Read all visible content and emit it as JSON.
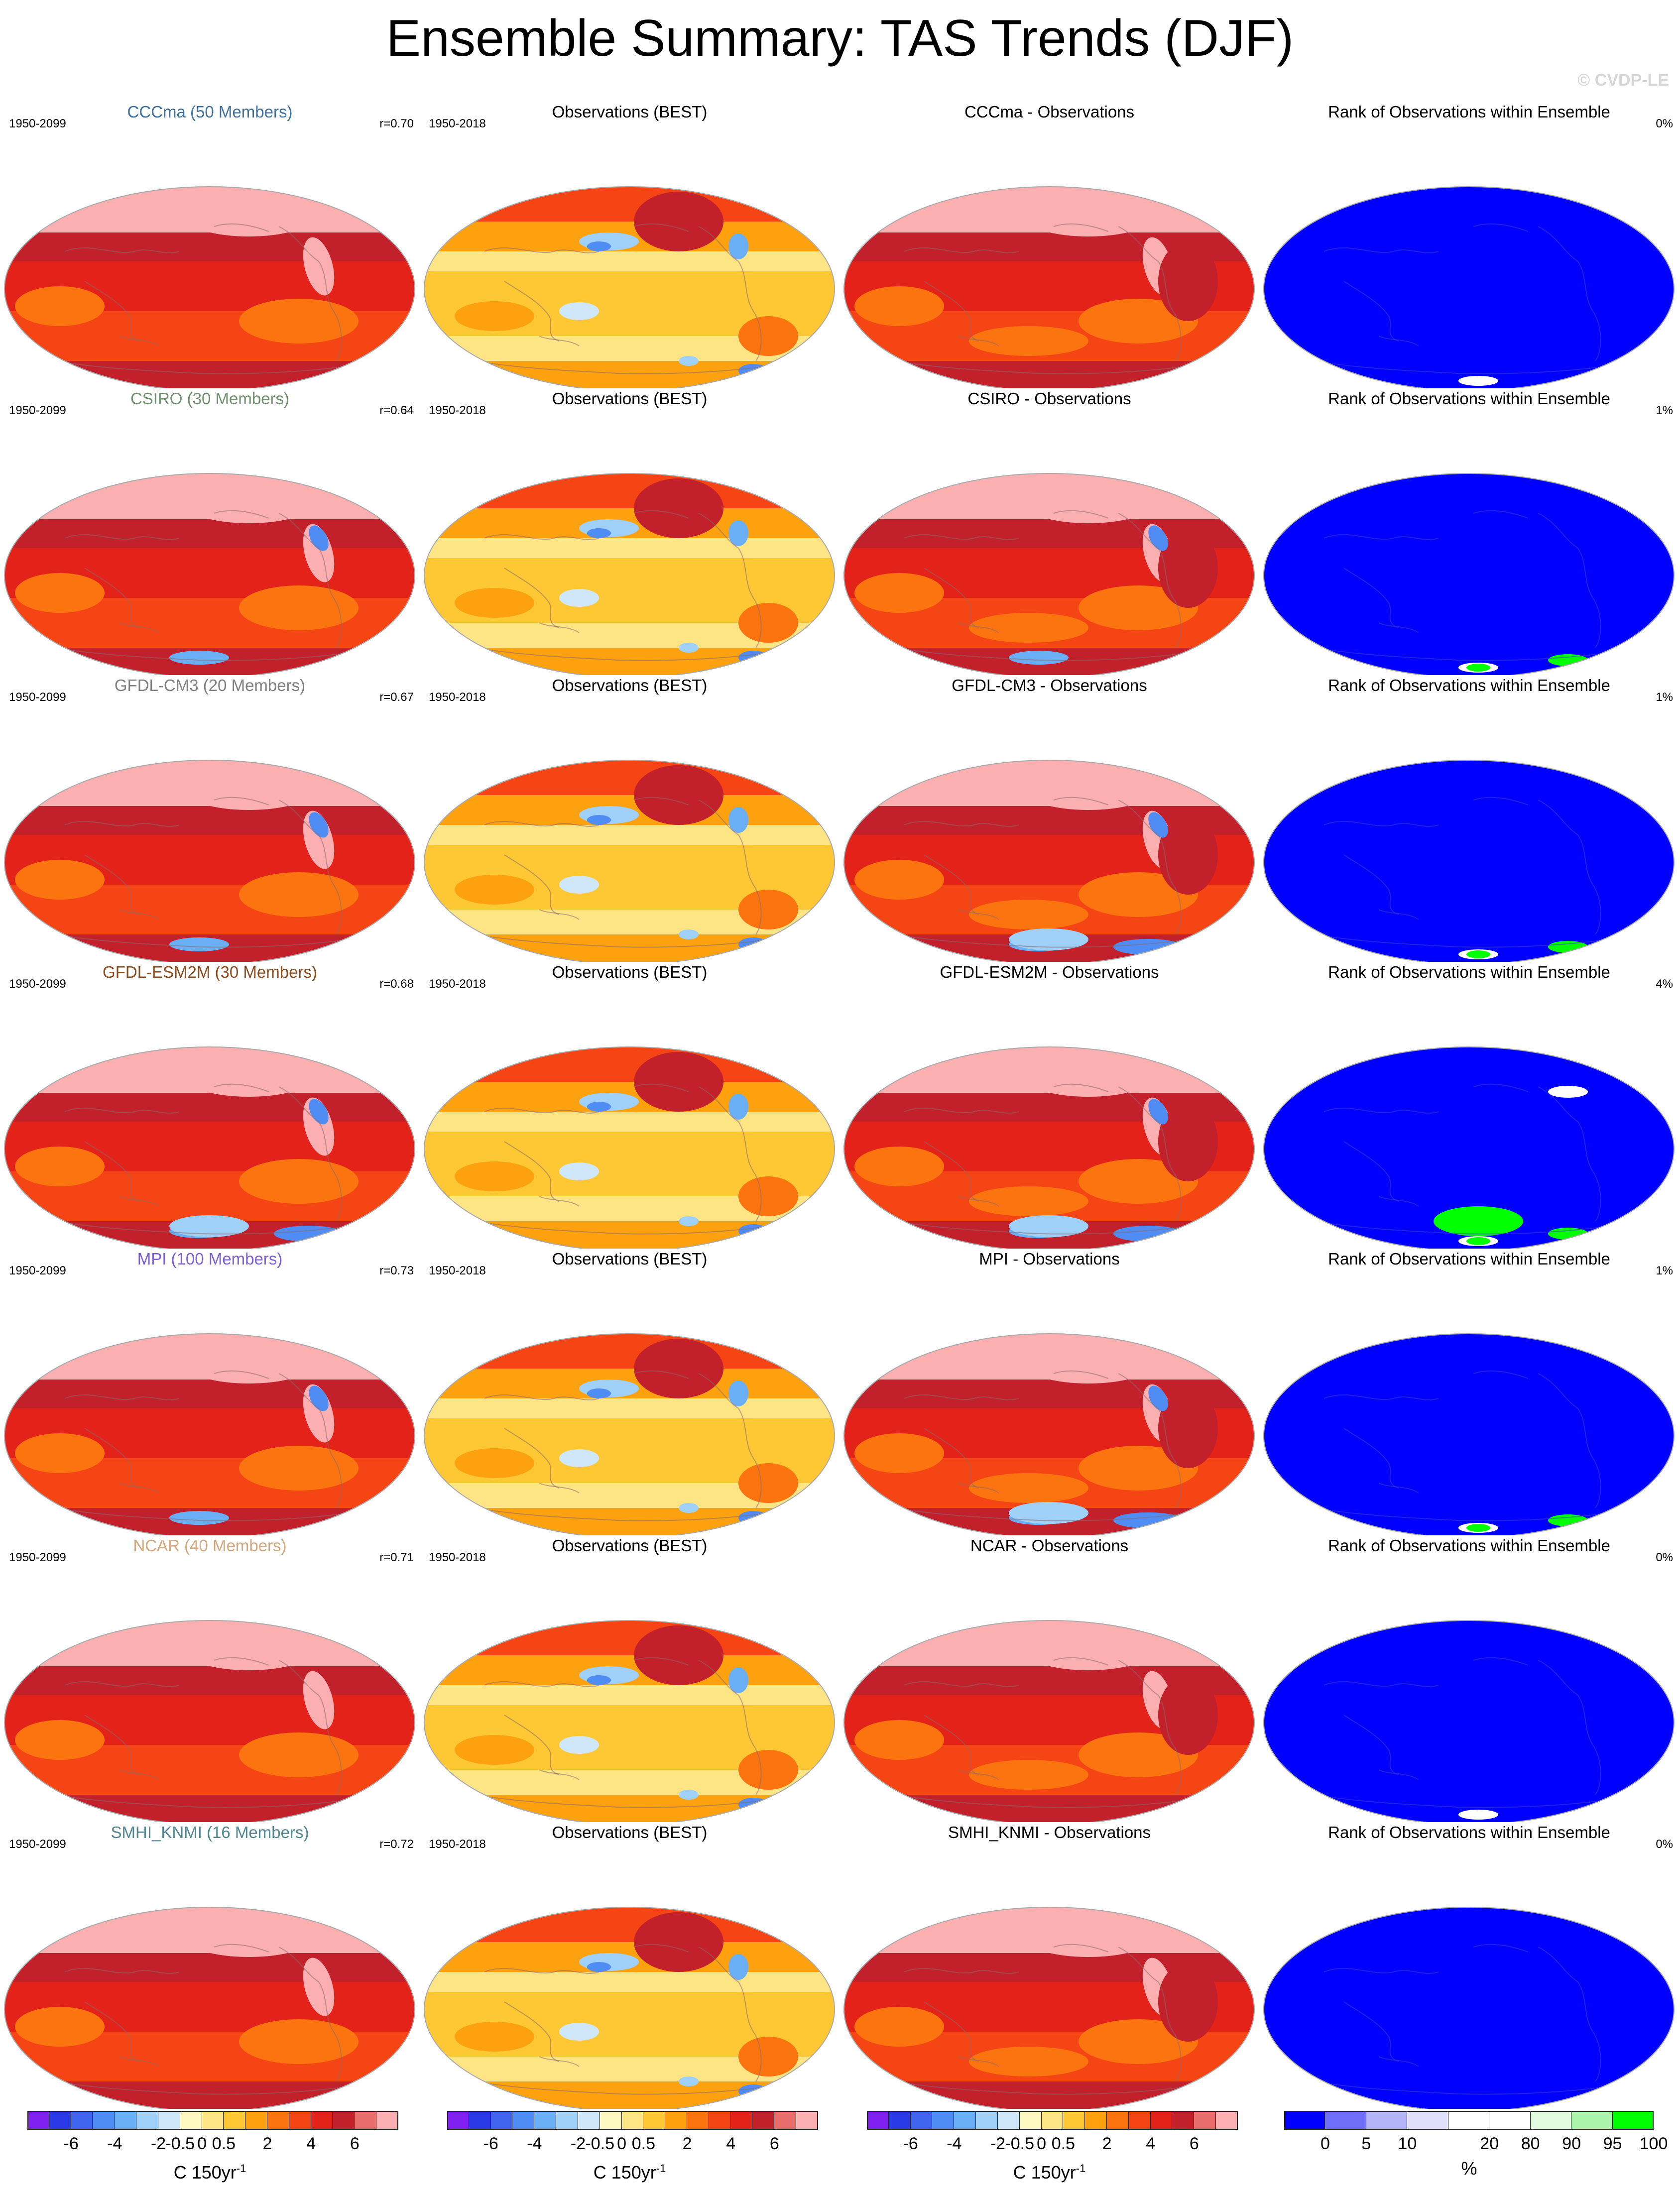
{
  "header": {
    "title": "Ensemble Summary: TAS Trends (DJF)",
    "copyright": "© CVDP-LE"
  },
  "rows": [
    {
      "model": "CCCma (50 Members)",
      "model_color": "#3a6f9e",
      "model_period": "1950-2099",
      "correlation": "r=0.70",
      "obs_title": "Observations (BEST)",
      "obs_period": "1950-2018",
      "diff_title": "CCCma - Observations",
      "rank_title": "Rank of Observations within Ensemble",
      "rank_pct": "0%",
      "model_map": {
        "blue_bands": 0
      },
      "diff_map": {
        "blue_bands": 0
      },
      "rank_map": {
        "green_bands": 0,
        "white_bands": 1
      }
    },
    {
      "model": "CSIRO (30 Members)",
      "model_color": "#6f8f6f",
      "model_period": "1950-2099",
      "correlation": "r=0.64",
      "obs_title": "Observations (BEST)",
      "obs_period": "1950-2018",
      "diff_title": "CSIRO - Observations",
      "rank_title": "Rank of Observations within Ensemble",
      "rank_pct": "1%",
      "model_map": {
        "blue_bands": 1
      },
      "diff_map": {
        "blue_bands": 1
      },
      "rank_map": {
        "green_bands": 2,
        "white_bands": 2
      }
    },
    {
      "model": "GFDL-CM3 (20 Members)",
      "model_color": "#7f7f7f",
      "model_period": "1950-2099",
      "correlation": "r=0.67",
      "obs_title": "Observations (BEST)",
      "obs_period": "1950-2018",
      "diff_title": "GFDL-CM3 - Observations",
      "rank_title": "Rank of Observations within Ensemble",
      "rank_pct": "1%",
      "model_map": {
        "blue_bands": 1
      },
      "diff_map": {
        "blue_bands": 2
      },
      "rank_map": {
        "green_bands": 2,
        "white_bands": 2
      }
    },
    {
      "model": "GFDL-ESM2M (30 Members)",
      "model_color": "#8a4b1f",
      "model_period": "1950-2099",
      "correlation": "r=0.68",
      "obs_title": "Observations (BEST)",
      "obs_period": "1950-2018",
      "diff_title": "GFDL-ESM2M - Observations",
      "rank_title": "Rank of Observations within Ensemble",
      "rank_pct": "4%",
      "model_map": {
        "blue_bands": 2
      },
      "diff_map": {
        "blue_bands": 2
      },
      "rank_map": {
        "green_bands": 3,
        "white_bands": 3
      }
    },
    {
      "model": "MPI (100 Members)",
      "model_color": "#7b5fd6",
      "model_period": "1950-2099",
      "correlation": "r=0.73",
      "obs_title": "Observations (BEST)",
      "obs_period": "1950-2018",
      "diff_title": "MPI - Observations",
      "rank_title": "Rank of Observations within Ensemble",
      "rank_pct": "1%",
      "model_map": {
        "blue_bands": 1
      },
      "diff_map": {
        "blue_bands": 2
      },
      "rank_map": {
        "green_bands": 2,
        "white_bands": 2
      }
    },
    {
      "model": "NCAR (40 Members)",
      "model_color": "#d2a77d",
      "model_period": "1950-2099",
      "correlation": "r=0.71",
      "obs_title": "Observations (BEST)",
      "obs_period": "1950-2018",
      "diff_title": "NCAR - Observations",
      "rank_title": "Rank of Observations within Ensemble",
      "rank_pct": "0%",
      "model_map": {
        "blue_bands": 0
      },
      "diff_map": {
        "blue_bands": 0
      },
      "rank_map": {
        "green_bands": 0,
        "white_bands": 1
      }
    },
    {
      "model": "SMHI_KNMI (16 Members)",
      "model_color": "#4f8690",
      "model_period": "1950-2099",
      "correlation": "r=0.72",
      "obs_title": "Observations (BEST)",
      "obs_period": "1950-2018",
      "diff_title": "SMHI_KNMI - Observations",
      "rank_title": "Rank of Observations within Ensemble",
      "rank_pct": "0%",
      "model_map": {
        "blue_bands": 0
      },
      "diff_map": {
        "blue_bands": 0
      },
      "rank_map": {
        "green_bands": 0,
        "white_bands": 0
      }
    }
  ],
  "colorbars": {
    "trend": {
      "colors": [
        "#7f1ff0",
        "#2a39e6",
        "#3f65ef",
        "#4f8df4",
        "#6aaef5",
        "#9fd0f7",
        "#cfe7f8",
        "#fdf7c0",
        "#fde485",
        "#fdc834",
        "#fda10f",
        "#fb7410",
        "#f54514",
        "#e3231a",
        "#c2202a",
        "#e86d6d",
        "#fbafb1"
      ],
      "tick_labels": [
        "-6",
        "-4",
        "-2",
        "-0.5",
        "0",
        "0.5",
        "2",
        "4",
        "6"
      ],
      "unit": "C 150yr",
      "unit_exp": "-1"
    },
    "rank": {
      "colors": [
        "#0000ff",
        "#6e6ef8",
        "#b4b4f8",
        "#e0e0fb",
        "#ffffff",
        "#ffffff",
        "#e1fbe1",
        "#a9f4a9",
        "#00ff00"
      ],
      "tick_labels": [
        "0",
        "5",
        "10",
        "20",
        "80",
        "90",
        "95",
        "100"
      ],
      "unit": "%"
    }
  }
}
